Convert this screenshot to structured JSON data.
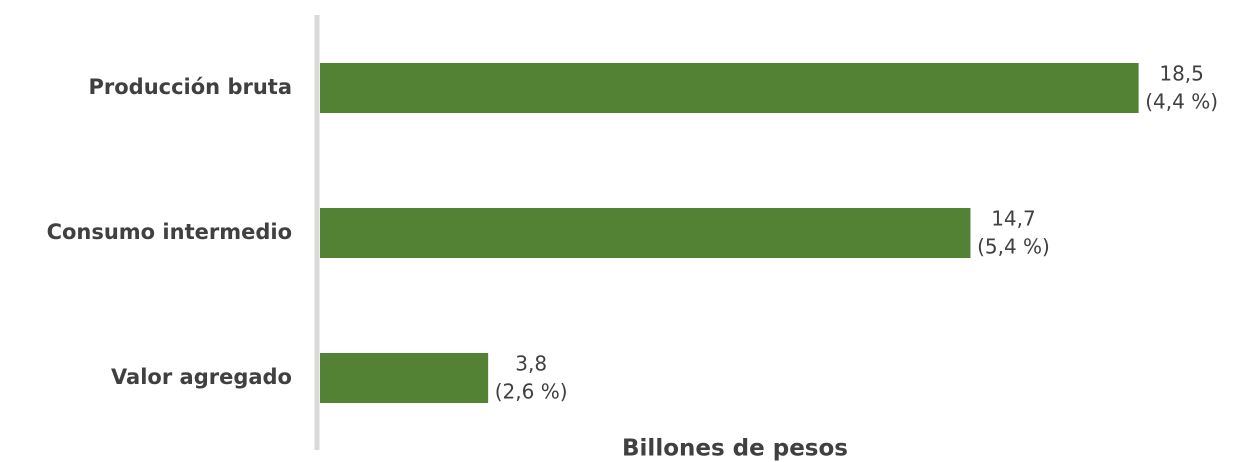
{
  "chart_data": {
    "type": "barh",
    "categories": [
      "Producción bruta",
      "Consumo intermedio",
      "Valor agregado"
    ],
    "values": [
      18.5,
      14.7,
      3.8
    ],
    "value_labels": [
      "18,5",
      "14,7",
      "3,8"
    ],
    "growth": [
      4.4,
      5.4,
      2.6
    ],
    "growth_labels": [
      "(4,4 %)",
      "(5,4 %)",
      "(2,6 %)"
    ],
    "color": "#548235",
    "xlabel": "Billones de pesos",
    "xlim": [
      0,
      20
    ]
  }
}
